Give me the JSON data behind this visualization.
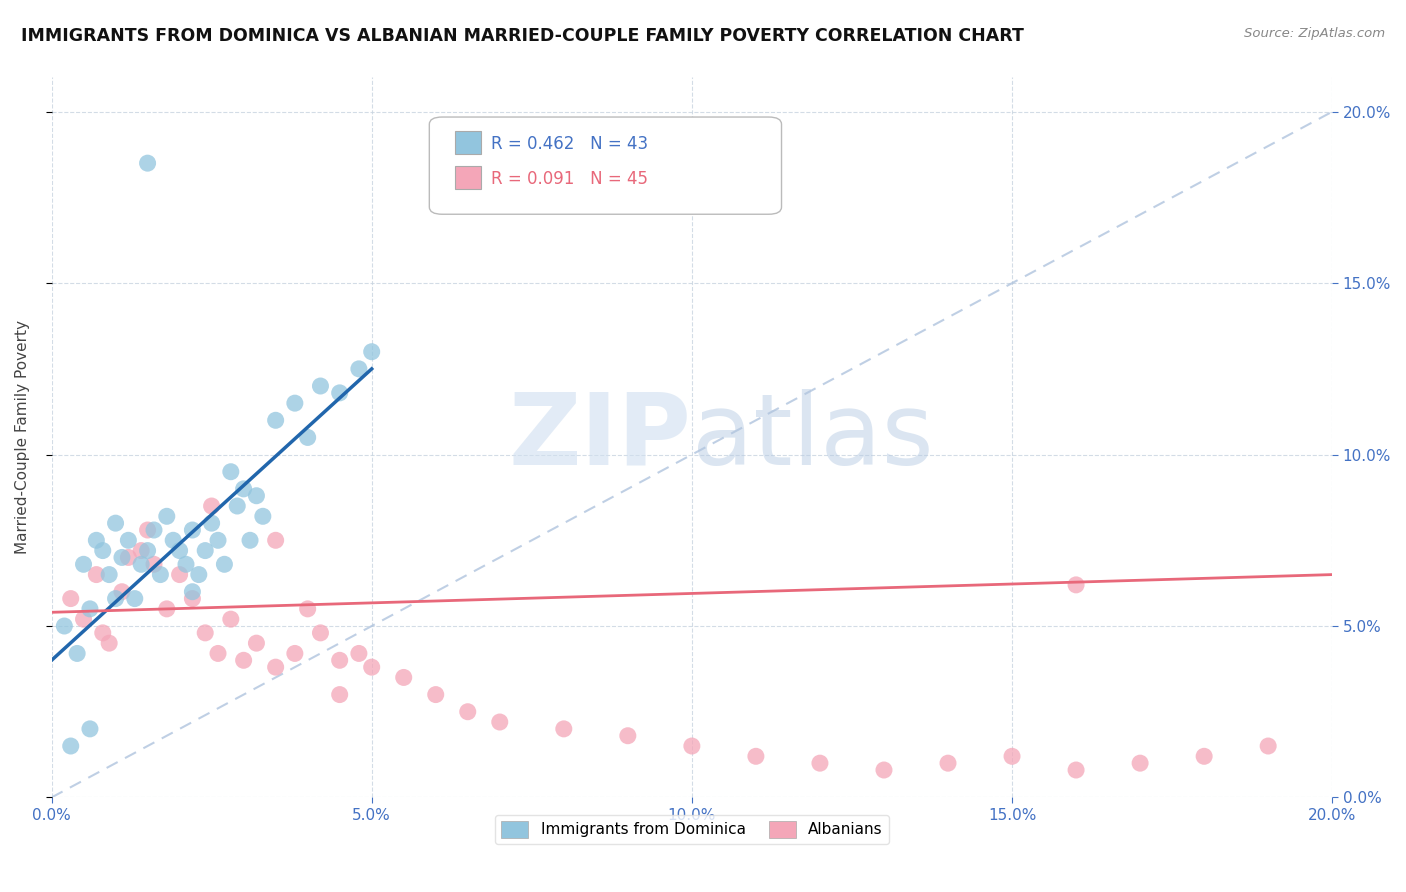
{
  "title": "IMMIGRANTS FROM DOMINICA VS ALBANIAN MARRIED-COUPLE FAMILY POVERTY CORRELATION CHART",
  "source": "Source: ZipAtlas.com",
  "ylabel": "Married-Couple Family Poverty",
  "xlim": [
    0,
    0.2
  ],
  "ylim": [
    0,
    0.21
  ],
  "yticks": [
    0.0,
    0.05,
    0.1,
    0.15,
    0.2
  ],
  "xticks": [
    0.0,
    0.05,
    0.1,
    0.15,
    0.2
  ],
  "blue_R": 0.462,
  "blue_N": 43,
  "pink_R": 0.091,
  "pink_N": 45,
  "blue_color": "#92c5de",
  "pink_color": "#f4a6b8",
  "blue_line_color": "#2166ac",
  "pink_line_color": "#e8687a",
  "watermark_zip": "ZIP",
  "watermark_atlas": "atlas",
  "legend_label_blue": "Immigrants from Dominica",
  "legend_label_pink": "Albanians",
  "blue_scatter_x": [
    0.002,
    0.004,
    0.005,
    0.006,
    0.007,
    0.008,
    0.009,
    0.01,
    0.01,
    0.011,
    0.012,
    0.013,
    0.014,
    0.015,
    0.016,
    0.017,
    0.018,
    0.019,
    0.02,
    0.021,
    0.022,
    0.022,
    0.023,
    0.024,
    0.025,
    0.026,
    0.027,
    0.028,
    0.029,
    0.03,
    0.031,
    0.032,
    0.033,
    0.035,
    0.038,
    0.04,
    0.042,
    0.045,
    0.048,
    0.05,
    0.003,
    0.006,
    0.015
  ],
  "blue_scatter_y": [
    0.05,
    0.042,
    0.068,
    0.055,
    0.075,
    0.072,
    0.065,
    0.08,
    0.058,
    0.07,
    0.075,
    0.058,
    0.068,
    0.072,
    0.078,
    0.065,
    0.082,
    0.075,
    0.072,
    0.068,
    0.06,
    0.078,
    0.065,
    0.072,
    0.08,
    0.075,
    0.068,
    0.095,
    0.085,
    0.09,
    0.075,
    0.088,
    0.082,
    0.11,
    0.115,
    0.105,
    0.12,
    0.118,
    0.125,
    0.13,
    0.015,
    0.02,
    0.185
  ],
  "pink_scatter_x": [
    0.003,
    0.005,
    0.007,
    0.009,
    0.011,
    0.012,
    0.014,
    0.016,
    0.018,
    0.02,
    0.022,
    0.024,
    0.026,
    0.028,
    0.03,
    0.032,
    0.035,
    0.038,
    0.04,
    0.042,
    0.045,
    0.048,
    0.05,
    0.055,
    0.06,
    0.065,
    0.07,
    0.08,
    0.09,
    0.1,
    0.11,
    0.12,
    0.13,
    0.14,
    0.15,
    0.16,
    0.17,
    0.18,
    0.19,
    0.008,
    0.015,
    0.025,
    0.035,
    0.045,
    0.16
  ],
  "pink_scatter_y": [
    0.058,
    0.052,
    0.065,
    0.045,
    0.06,
    0.07,
    0.072,
    0.068,
    0.055,
    0.065,
    0.058,
    0.048,
    0.042,
    0.052,
    0.04,
    0.045,
    0.038,
    0.042,
    0.055,
    0.048,
    0.04,
    0.042,
    0.038,
    0.035,
    0.03,
    0.025,
    0.022,
    0.02,
    0.018,
    0.015,
    0.012,
    0.01,
    0.008,
    0.01,
    0.012,
    0.008,
    0.01,
    0.012,
    0.015,
    0.048,
    0.078,
    0.085,
    0.075,
    0.03,
    0.062
  ]
}
